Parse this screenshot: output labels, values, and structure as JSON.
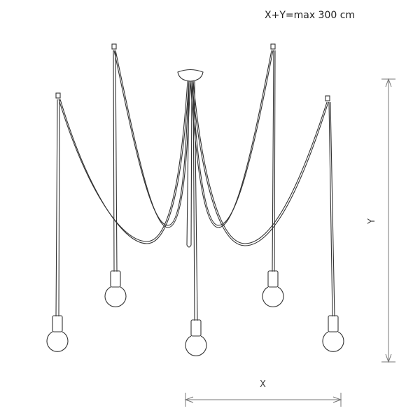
{
  "note": "X+Y=max 300 cm",
  "dimensions": {
    "x_label": "X",
    "y_label": "Y"
  },
  "colors": {
    "line": "#333333",
    "dimension": "#777777"
  }
}
